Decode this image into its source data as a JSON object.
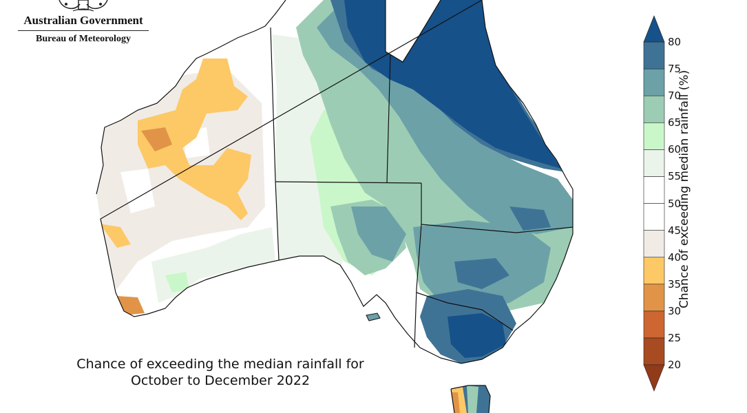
{
  "header": {
    "organisation": "Australian Government",
    "agency": "Bureau of Meteorology"
  },
  "map": {
    "caption_line1": "Chance of exceeding the median rainfall for",
    "caption_line2": "October to December 2022",
    "region": "Australia",
    "regions_shaded": [
      {
        "area": "northern Queensland and Cape York",
        "level": "above 75"
      },
      {
        "area": "eastern Victoria",
        "level": "70 to 80"
      },
      {
        "area": "New South Wales",
        "level": "65 to 75"
      },
      {
        "area": "northern Northern Territory",
        "level": "70 to 80"
      },
      {
        "area": "central South Australia",
        "level": "55 to 70"
      },
      {
        "area": "Western Australia Pilbara and interior",
        "level": "35 to 45"
      },
      {
        "area": "south-west Western Australia",
        "level": "30 to 40"
      }
    ]
  },
  "legend": {
    "title": "Chance of exceeding median rainfall (%)",
    "ticks": [
      "20",
      "25",
      "30",
      "35",
      "40",
      "45",
      "50",
      "55",
      "60",
      "65",
      "70",
      "75",
      "80"
    ],
    "bins": [
      {
        "range": "20-25",
        "color": "#a84b22"
      },
      {
        "range": "25-30",
        "color": "#cd6631"
      },
      {
        "range": "30-35",
        "color": "#e19447"
      },
      {
        "range": "35-40",
        "color": "#fdc866"
      },
      {
        "range": "40-45",
        "color": "#f0ebe5"
      },
      {
        "range": "45-50",
        "color": "#ffffff"
      },
      {
        "range": "50-55",
        "color": "#ffffff"
      },
      {
        "range": "55-60",
        "color": "#ebf4ea"
      },
      {
        "range": "60-65",
        "color": "#caf7c9"
      },
      {
        "range": "65-70",
        "color": "#9ccdb4"
      },
      {
        "range": "70-75",
        "color": "#6ca1a8"
      },
      {
        "range": "75-80",
        "color": "#3f7396"
      }
    ],
    "under_color": "#913b1a",
    "over_color": "#165189"
  }
}
